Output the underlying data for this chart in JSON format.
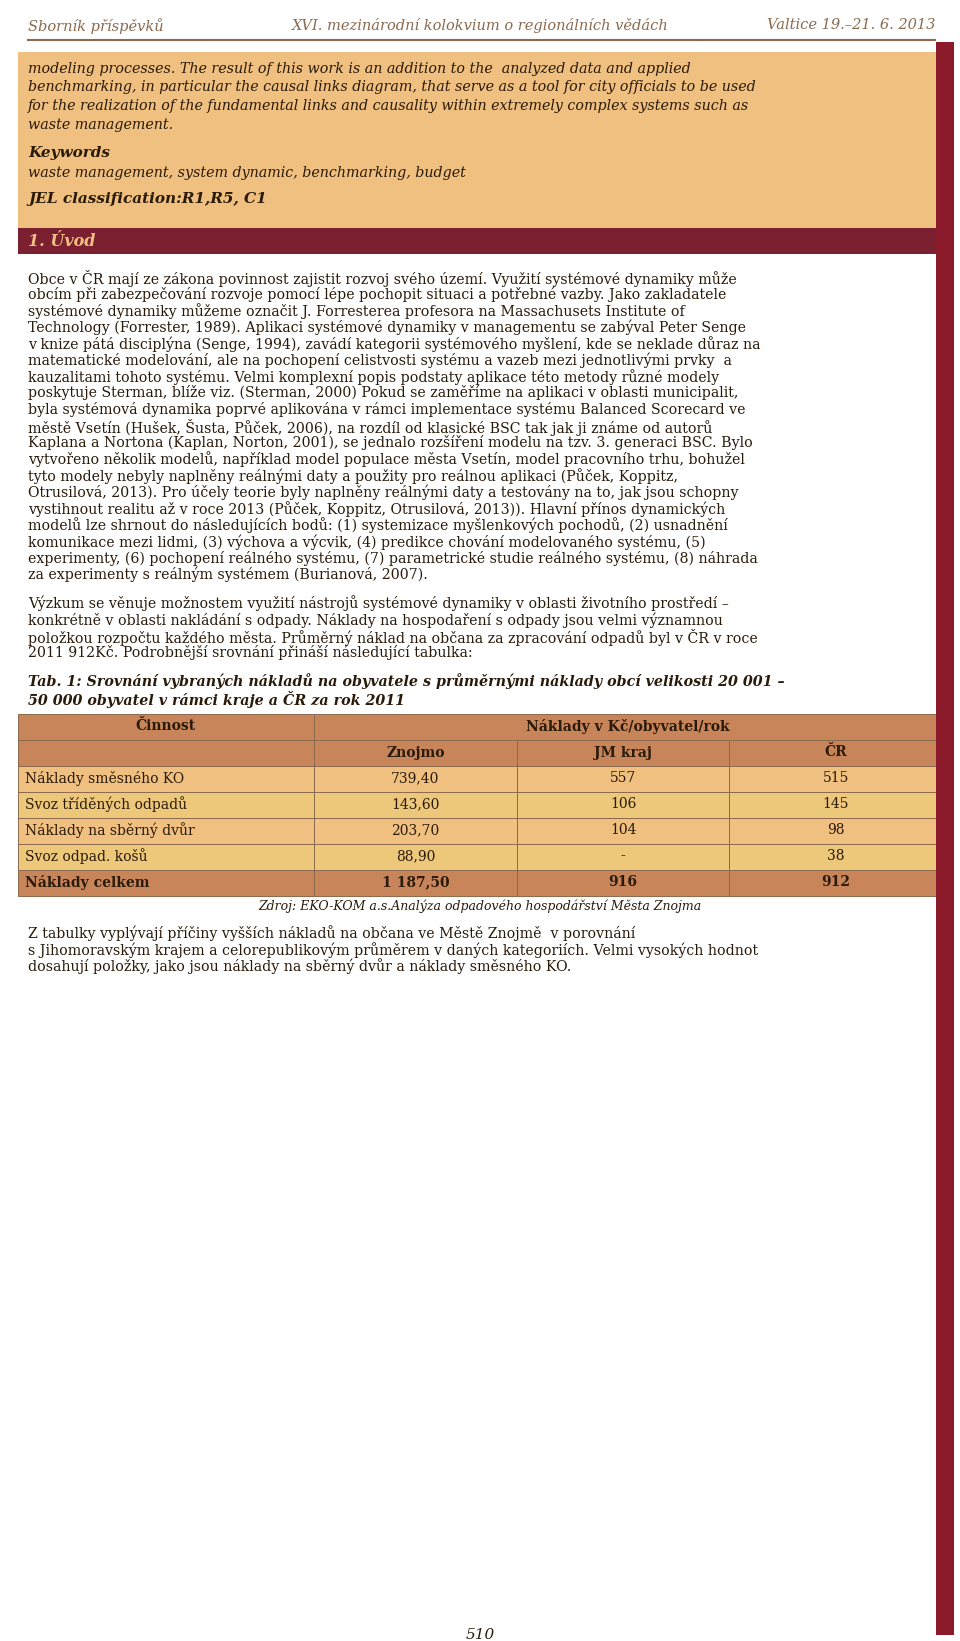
{
  "header_left": "Sborník příspěvků",
  "header_center": "XVI. mezinárodní kolokvium o regionálních vědách",
  "header_right": "Valtice 19.–21. 6. 2013",
  "header_color": "#8B6A4E",
  "abstract_bg": "#F0C080",
  "abstract_text_lines": [
    "modeling processes. The result of this work is an addition to the  analyzed data and applied",
    "benchmarking, in particular the causal links diagram, that serve as a tool for city officials to be used",
    "for the realization of the fundamental links and causality within extremely complex systems such as",
    "waste management."
  ],
  "keywords_label": "Keywords",
  "keywords_text": "waste management, system dynamic, benchmarking, budget",
  "jel_text": "JEL classification:R1,R5, C1",
  "section_heading": "1. Úvod",
  "section_bg": "#7B2030",
  "section_text_color": "#F0C080",
  "body_para1_lines": [
    "Obce v ČR mají ze zákona povinnost zajistit rozvoj svého území. Využití systémové dynamiky může",
    "obcím při zabezpečování rozvoje pomocí lépe pochopit situaci a potřebné vazby. Jako zakladatele",
    "systémové dynamiky můžeme označit J. Forresterea profesora na Massachusets Institute of",
    "Technology (Forrester, 1989). Aplikaci systémové dynamiky v managementu se zabýval Peter Senge",
    "v knize pátá disciplýna (Senge, 1994), zavádí kategorii systémového myšlení, kde se neklade důraz na",
    "matematické modelování, ale na pochopení celistvosti systému a vazeb mezi jednotlivými prvky  a",
    "kauzalitami tohoto systému. Velmi komplexní popis podstaty aplikace této metody různé modely",
    "poskytuje Sterman, blíže viz. (Sterman, 2000) Pokud se zaměříme na aplikaci v oblasti municipalit,",
    "byla systémová dynamika poprvé aplikována v rámci implementace systému Balanced Scorecard ve",
    "městě Vsetín (Hušek, Šusta, Půček, 2006), na rozdíl od klasické BSC tak jak ji známe od autorů",
    "Kaplana a Nortona (Kaplan, Norton, 2001), se jednalo rozšíření modelu na tzv. 3. generaci BSC. Bylo",
    "vytvořeno několik modelů, například model populace města Vsetín, model pracovního trhu, bohužel",
    "tyto modely nebyly naplněny reálnými daty a použity pro reálnou aplikaci (Půček, Koppitz,",
    "Otrusilová, 2013). Pro účely teorie byly naplněny reálnými daty a testovány na to, jak jsou schopny",
    "vystihnout realitu až v roce 2013 (Půček, Koppitz, Otrusilová, 2013)). Hlavní přínos dynamických",
    "modelů lze shrnout do následujících bodů: (1) systemizace myšlenkových pochodů, (2) usnadnění",
    "komunikace mezi lidmi, (3) výchova a výcvik, (4) predikce chování modelovaného systému, (5)",
    "experimenty, (6) pochopení reálného systému, (7) parametrické studie reálného systému, (8) náhrada",
    "za experimenty s reálným systémem (Burianová, 2007)."
  ],
  "body_para2_lines": [
    "Výzkum se věnuje možnostem využití nástrojů systémové dynamiky v oblasti životního prostředí –",
    "konkrétně v oblasti nakládání s odpady. Náklady na hospodaření s odpady jsou velmi významnou",
    "položkou rozpočtu každého města. Průměrný náklad na občana za zpracování odpadů byl v ČR v roce",
    "2011 912Kč. Podrobnější srovnání přináší následující tabulka:"
  ],
  "table_caption_lines": [
    "Tab. 1: Srovnání vybraných nákladů na obyvatele s průměrnými náklady obcí velikosti 20 001 –",
    "50 000 obyvatel v rámci kraje a ČR za rok 2011"
  ],
  "table_header_bg": "#C8855A",
  "table_row_bg": "#F0C080",
  "table_alt_row_bg": "#EEC87A",
  "table_border_color": "#8B6A4E",
  "table_col0_header": "Činnost",
  "table_col1_header": "Náklady v Kč/obyvatel/rok",
  "table_subheaders": [
    "",
    "Znojmo",
    "JM kraj",
    "ČR"
  ],
  "table_rows": [
    [
      "Náklady směsného KO",
      "739,40",
      "557",
      "515"
    ],
    [
      "Svoz tříděných odpadů",
      "143,60",
      "106",
      "145"
    ],
    [
      "Náklady na sběrný dvůr",
      "203,70",
      "104",
      "98"
    ],
    [
      "Svoz odpad. košů",
      "88,90",
      "-",
      "38"
    ],
    [
      "Náklady celkem",
      "1 187,50",
      "916",
      "912"
    ]
  ],
  "table_source": "Zdroj: EKO-KOM a.s.Analýza odpadového hospodářství Města Znojma",
  "footer_lines": [
    "Z tabulky vyplývají příčiny vyšších nákladů na občana ve Městě Znojmě  v porovnání",
    "s Jihomoravským krajem a celorepublikovým průměrem v daných kategoriích. Velmi vysokých hodnot",
    "dosahují položky, jako jsou náklady na sběrný dvůr a náklady směsného KO."
  ],
  "page_number": "510",
  "red_bar_color": "#8B1A2A",
  "bg_color": "#FFFFFF",
  "text_color": "#2A1A0A"
}
